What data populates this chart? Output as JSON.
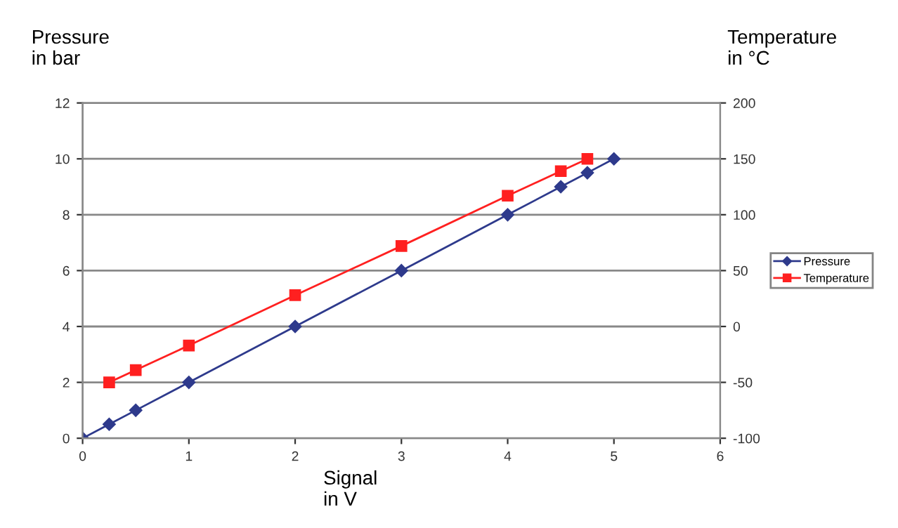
{
  "chart_data": {
    "type": "line",
    "xlabel": "Signal\nin V",
    "ylabel": "Pressure\nin bar",
    "y2label": "Temperature\nin °C",
    "xlim": [
      0,
      6
    ],
    "xticks": [
      0,
      1,
      2,
      3,
      4,
      5,
      6
    ],
    "ylim": [
      0,
      12
    ],
    "yticks": [
      0,
      2,
      4,
      6,
      8,
      10,
      12
    ],
    "y2lim": [
      -100,
      200
    ],
    "y2ticks": [
      -100,
      -50,
      0,
      50,
      100,
      150,
      200
    ],
    "grid": "y",
    "legend": "right",
    "line_style": "solid",
    "series": [
      {
        "name": "Pressure",
        "color": "#2e3a8c",
        "marker": "diamond",
        "x": [
          0,
          0.25,
          0.5,
          1,
          2,
          3,
          4,
          4.5,
          4.75,
          5
        ],
        "values": [
          0,
          0.5,
          1,
          2,
          4,
          6,
          8,
          9,
          9.5,
          10
        ]
      },
      {
        "name": "Temperature",
        "color": "#ff2020",
        "marker": "square",
        "axis": "y2",
        "x": [
          0.25,
          0.5,
          1,
          2,
          3,
          4,
          4.5,
          4.75
        ],
        "values": [
          -50,
          -39,
          -17,
          28,
          72,
          117,
          139,
          150
        ]
      }
    ]
  }
}
